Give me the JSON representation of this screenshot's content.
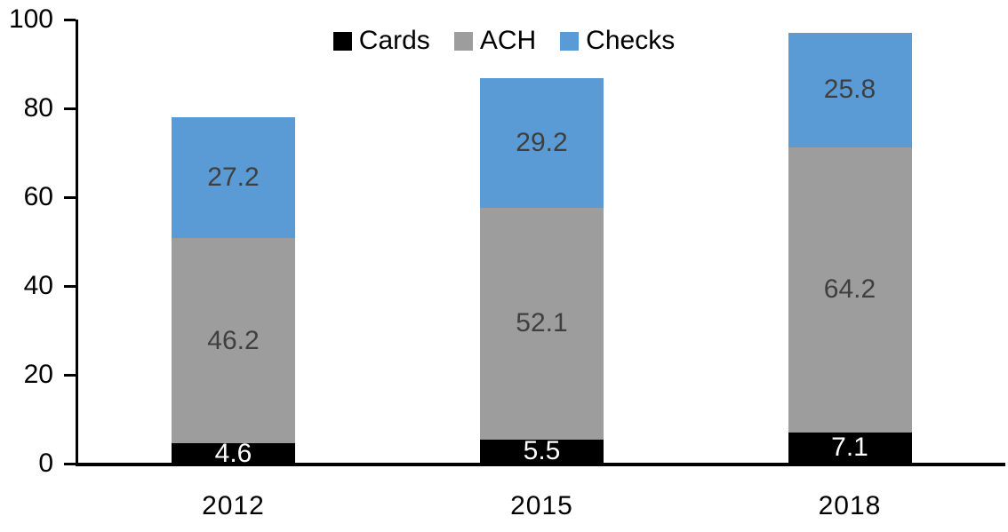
{
  "chart_data": {
    "type": "bar",
    "stacked": true,
    "title": "",
    "xlabel": "",
    "ylabel": "",
    "categories": [
      "2012",
      "2015",
      "2018"
    ],
    "series": [
      {
        "name": "Cards",
        "color": "#000000",
        "label_color": "#ffffff",
        "values": [
          4.6,
          5.5,
          7.1
        ]
      },
      {
        "name": "ACH",
        "color": "#9d9d9d",
        "label_color": "#3f3f3f",
        "values": [
          46.2,
          52.1,
          64.2
        ]
      },
      {
        "name": "Checks",
        "color": "#5b9bd5",
        "label_color": "#3f3f3f",
        "values": [
          27.2,
          29.2,
          25.8
        ]
      }
    ],
    "totals": [
      78.0,
      86.8,
      97.1
    ],
    "ylim": [
      0,
      100
    ],
    "yticks": [
      0,
      20,
      40,
      60,
      80,
      100
    ],
    "grid": false,
    "legend_position": "top-center",
    "axis_color": "#000000"
  }
}
